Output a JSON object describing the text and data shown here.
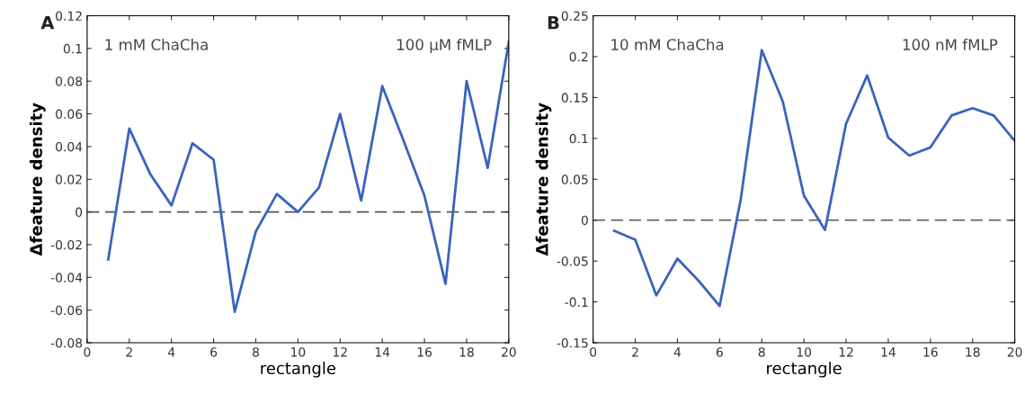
{
  "chart_data": [
    {
      "type": "line",
      "xlabel": "rectangle",
      "ylabel": "Δfeature density",
      "annotations": [
        "A",
        "1 mM ChaCha",
        "100 µM fMLP"
      ],
      "x": [
        1,
        2,
        3,
        4,
        5,
        6,
        7,
        8,
        9,
        10,
        11,
        12,
        13,
        14,
        15,
        16,
        17,
        18,
        19,
        20
      ],
      "series": [
        {
          "color": "#3a62c0",
          "values": [
            -0.029,
            0.051,
            0.023,
            0.004,
            0.042,
            0.032,
            -0.061,
            -0.012,
            0.011,
            0.0,
            0.015,
            0.06,
            0.007,
            0.077,
            0.044,
            0.01,
            -0.044,
            0.08,
            0.027,
            0.104
          ]
        }
      ],
      "xlim": [
        0,
        20
      ],
      "xticks": [
        0,
        2,
        4,
        6,
        8,
        10,
        12,
        14,
        16,
        18,
        20
      ],
      "ylim": [
        -0.08,
        0.12
      ],
      "yticks": [
        -0.08,
        -0.06,
        -0.04,
        -0.02,
        0,
        0.02,
        0.04,
        0.06,
        0.08,
        0.1,
        0.12
      ],
      "ref_lines": [
        {
          "axis": "y",
          "value": 0,
          "color": "#555555",
          "line_style": "dashed"
        }
      ],
      "grid": false,
      "legend": false,
      "marker": "none",
      "line_style": "solid"
    },
    {
      "type": "line",
      "xlabel": "rectangle",
      "ylabel": "Δfeature density",
      "annotations": [
        "B",
        "10 mM ChaCha",
        "100 nM fMLP"
      ],
      "x": [
        1,
        2,
        3,
        4,
        5,
        6,
        7,
        8,
        9,
        10,
        11,
        12,
        13,
        14,
        15,
        16,
        17,
        18,
        19,
        20
      ],
      "series": [
        {
          "color": "#3a62c0",
          "values": [
            -0.013,
            -0.024,
            -0.092,
            -0.047,
            -0.074,
            -0.105,
            0.025,
            0.208,
            0.145,
            0.03,
            -0.012,
            0.118,
            0.177,
            0.101,
            0.079,
            0.089,
            0.128,
            0.137,
            0.128,
            0.097
          ]
        }
      ],
      "xlim": [
        0,
        20
      ],
      "xticks": [
        0,
        2,
        4,
        6,
        8,
        10,
        12,
        14,
        16,
        18,
        20
      ],
      "ylim": [
        -0.15,
        0.25
      ],
      "yticks": [
        -0.15,
        -0.1,
        -0.05,
        0,
        0.05,
        0.1,
        0.15,
        0.2,
        0.25
      ],
      "ref_lines": [
        {
          "axis": "y",
          "value": 0,
          "color": "#555555",
          "line_style": "dashed"
        }
      ],
      "grid": false,
      "legend": false,
      "marker": "none",
      "line_style": "solid"
    }
  ]
}
